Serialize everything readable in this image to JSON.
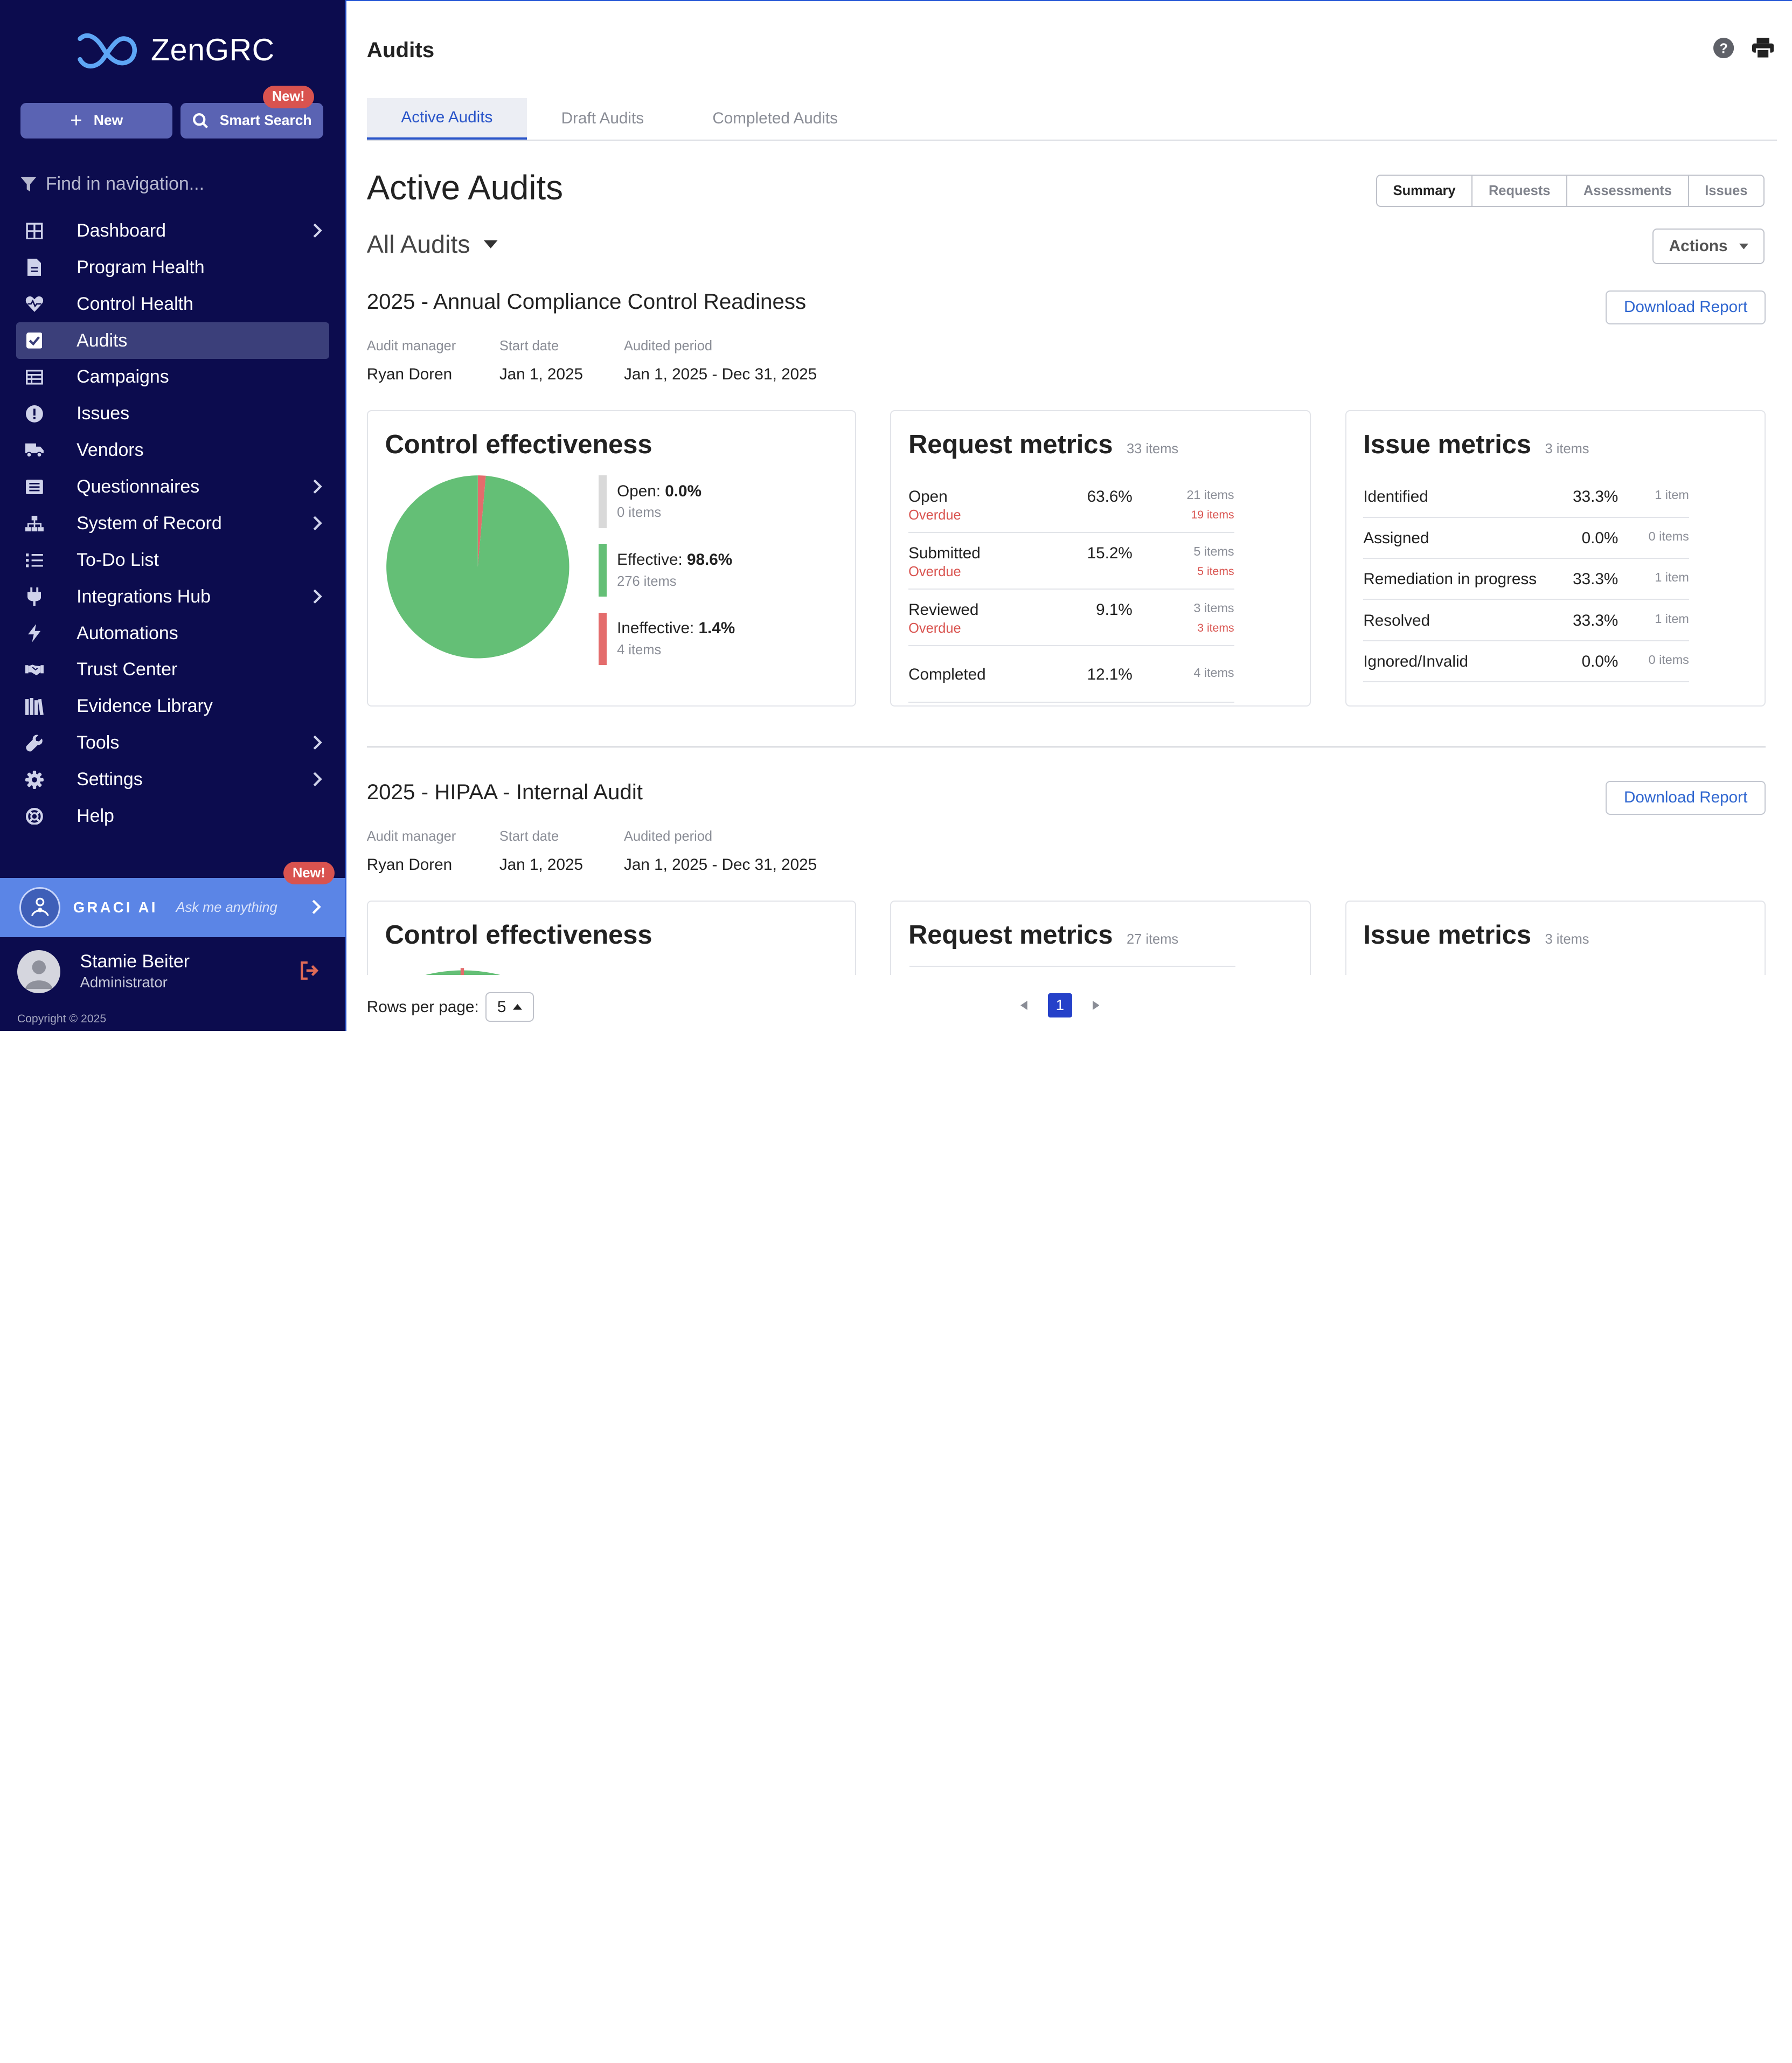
{
  "brand": {
    "name": "ZenGRC"
  },
  "sidebar": {
    "new_label": "New",
    "smart_search_label": "Smart Search",
    "new_badge": "New!",
    "find_placeholder": "Find in navigation...",
    "items": [
      {
        "label": "Dashboard",
        "icon": "grid-icon",
        "chevron": true
      },
      {
        "label": "Program Health",
        "icon": "document-icon",
        "chevron": false
      },
      {
        "label": "Control Health",
        "icon": "heart-pulse-icon",
        "chevron": false
      },
      {
        "label": "Audits",
        "icon": "checkbox-icon",
        "chevron": false,
        "active": true
      },
      {
        "label": "Campaigns",
        "icon": "table-icon",
        "chevron": false
      },
      {
        "label": "Issues",
        "icon": "alert-circle-icon",
        "chevron": false
      },
      {
        "label": "Vendors",
        "icon": "truck-icon",
        "chevron": false
      },
      {
        "label": "Questionnaires",
        "icon": "list-box-icon",
        "chevron": true
      },
      {
        "label": "System of Record",
        "icon": "hierarchy-icon",
        "chevron": true
      },
      {
        "label": "To-Do List",
        "icon": "todo-list-icon",
        "chevron": false
      },
      {
        "label": "Integrations Hub",
        "icon": "plug-icon",
        "chevron": true
      },
      {
        "label": "Automations",
        "icon": "lightning-icon",
        "chevron": false
      },
      {
        "label": "Trust Center",
        "icon": "handshake-icon",
        "chevron": false
      },
      {
        "label": "Evidence Library",
        "icon": "library-icon",
        "chevron": false
      },
      {
        "label": "Tools",
        "icon": "wrench-icon",
        "chevron": true
      },
      {
        "label": "Settings",
        "icon": "gear-icon",
        "chevron": true
      },
      {
        "label": "Help",
        "icon": "lifebuoy-icon",
        "chevron": false
      }
    ],
    "graci": {
      "name": "GRACI AI",
      "placeholder": "Ask me anything",
      "badge": "New!"
    },
    "user": {
      "name": "Stamie Beiter",
      "role": "Administrator"
    },
    "copyright": "Copyright © 2025"
  },
  "header": {
    "title": "Audits",
    "tabs": [
      "Active Audits",
      "Draft Audits",
      "Completed Audits"
    ],
    "active_tab": 0
  },
  "content": {
    "heading": "Active Audits",
    "views": [
      "Summary",
      "Requests",
      "Assessments",
      "Issues"
    ],
    "active_view": "Summary",
    "filter": "All Audits",
    "actions_label": "Actions",
    "download_label": "Download Report",
    "meta_labels": {
      "manager": "Audit manager",
      "start": "Start date",
      "period": "Audited period"
    }
  },
  "audits": [
    {
      "title": "2025 - Annual Compliance Control Readiness",
      "manager": "Ryan Doren",
      "start_date": "Jan 1, 2025",
      "period": "Jan 1, 2025 - Dec 31, 2025",
      "control": {
        "title": "Control effectiveness",
        "legend": [
          {
            "name": "Open:",
            "pct": "0.0%",
            "items": "0 items",
            "color": "#d9d9d9",
            "value": 0.0
          },
          {
            "name": "Effective:",
            "pct": "98.6%",
            "items": "276 items",
            "color": "#64bf76",
            "value": 98.6
          },
          {
            "name": "Ineffective:",
            "pct": "1.4%",
            "items": "4 items",
            "color": "#e46c6c",
            "value": 1.4
          }
        ]
      },
      "requests": {
        "title": "Request metrics",
        "count": "33 items",
        "rows": [
          {
            "label": "Open",
            "overdue": "Overdue",
            "pct": "63.6%",
            "items": "21 items",
            "overdue_items": "19 items"
          },
          {
            "label": "Submitted",
            "overdue": "Overdue",
            "pct": "15.2%",
            "items": "5 items",
            "overdue_items": "5 items"
          },
          {
            "label": "Reviewed",
            "overdue": "Overdue",
            "pct": "9.1%",
            "items": "3 items",
            "overdue_items": "3 items"
          },
          {
            "label": "Completed",
            "overdue": "",
            "pct": "12.1%",
            "items": "4 items",
            "overdue_items": ""
          }
        ]
      },
      "issues": {
        "title": "Issue metrics",
        "count": "3 items",
        "rows": [
          {
            "label": "Identified",
            "pct": "33.3%",
            "items": "1 item"
          },
          {
            "label": "Assigned",
            "pct": "0.0%",
            "items": "0 items"
          },
          {
            "label": "Remediation in progress",
            "pct": "33.3%",
            "items": "1 item"
          },
          {
            "label": "Resolved",
            "pct": "33.3%",
            "items": "1 item"
          },
          {
            "label": "Ignored/Invalid",
            "pct": "0.0%",
            "items": "0 items"
          }
        ]
      }
    },
    {
      "title": "2025 - HIPAA - Internal Audit",
      "manager": "Ryan Doren",
      "start_date": "Jan 1, 2025",
      "period": "Jan 1, 2025 - Dec 31, 2025",
      "control": {
        "title": "Control effectiveness"
      },
      "requests": {
        "title": "Request metrics",
        "count": "27 items"
      },
      "issues": {
        "title": "Issue metrics",
        "count": "3 items"
      }
    }
  ],
  "footer": {
    "rows_label": "Rows per page:",
    "rows_value": "5",
    "page": "1"
  }
}
